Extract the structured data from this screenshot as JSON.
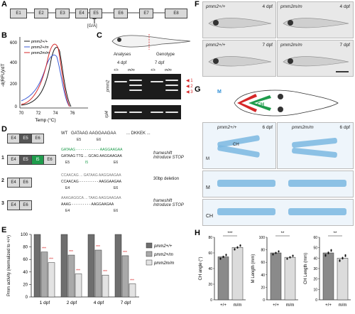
{
  "panels": {
    "a": "A",
    "b": "B",
    "c": "C",
    "d": "D",
    "e": "E",
    "f": "F",
    "g": "G",
    "h": "H"
  },
  "panel_a": {
    "exons": [
      "E1",
      "E2",
      "E3",
      "E4",
      "E5",
      "E6",
      "E7",
      "E8"
    ],
    "mutation": "[G/A]"
  },
  "panel_b": {
    "ylabel": "-d(RFU)/dT",
    "xlabel": "Temp (°C)",
    "legend": [
      "pmm2+/+",
      "pmm2+/m",
      "pmm2m/m"
    ],
    "colors": [
      "#1a1a1a",
      "#3b5bd6",
      "#d62728"
    ]
  },
  "panel_c": {
    "analyses": "Analyses",
    "genotype": "Genotype",
    "age1": "4 dpf",
    "age2": "7 dpf",
    "geno": [
      "+/+",
      "m/m",
      "+/+",
      "m/m"
    ],
    "gene1": "pmm2",
    "gene2": "rpl4",
    "arrows": [
      "1",
      "2",
      "3"
    ]
  },
  "panel_d": {
    "wt_label": "WT",
    "wt_seq": "GATAAG AAGGAAGAA",
    "wt_exons": [
      "E5",
      "E6"
    ],
    "wt_protein": "... DKKEK ...",
    "rows": [
      {
        "num": "1",
        "seq_top": "GATAAG - - - - - - - - - - - AAGGAAGAA",
        "seq_mid": "GATAAG TTG ... GCAG AAGGAAGAA",
        "exons": [
          "E5",
          "I5",
          "E6"
        ],
        "effect": "frameshift Introduce STOP"
      },
      {
        "num": "2",
        "seq_top": "CCAACAG ... GATAAG AAGGAAGAA",
        "seq_mid": "CCAACAG - - - - - - - - - AAGGAAGAA",
        "exons": [
          "E4",
          "E6"
        ],
        "effect": "30bp deletion"
      },
      {
        "num": "3",
        "seq_top": "AAAGAGGCA ... TAAG AAGGAAGAA",
        "seq_mid": "AAAG - - - - - - - - - AAGGAAGAA",
        "exons": [
          "E4",
          "E6"
        ],
        "effect": "frameshift Introduce STOP"
      }
    ]
  },
  "panel_f": {
    "labels": [
      "pmm2+/+",
      "pmm2m/m",
      "pmm2+/+",
      "pmm2m/m"
    ],
    "ages": [
      "4 dpf",
      "4 dpf",
      "7 dpf",
      "7 dpf"
    ]
  },
  "panel_g": {
    "m_label": "M",
    "ch_label": "CH",
    "titles": [
      "pmm2+/+",
      "pmm2m/m"
    ],
    "age": "6 dpf",
    "row_labels": [
      "M",
      "CH"
    ]
  },
  "chart_data": [
    {
      "type": "bar",
      "title": "",
      "ylabel": "Pmm activity (normalized to +/+)",
      "categories": [
        "1 dpf",
        "2 dpf",
        "4 dpf",
        "7 dpf"
      ],
      "ylim": [
        0,
        100
      ],
      "yticks": [
        0,
        20,
        40,
        60,
        80,
        100
      ],
      "series": [
        {
          "name": "pmm2+/+",
          "values": [
            100,
            100,
            100,
            100
          ],
          "color": "#6e6e6e"
        },
        {
          "name": "pmm2+/m",
          "values": [
            72,
            67,
            75,
            66
          ],
          "color": "#a9a9a9"
        },
        {
          "name": "pmm2m/m",
          "values": [
            55,
            37,
            35,
            21
          ],
          "color": "#e3e3e3"
        }
      ],
      "significance": "***"
    },
    {
      "type": "bar",
      "ylabel": "CH angle (°)",
      "categories": [
        "+/+",
        "m/m"
      ],
      "values": [
        55,
        67
      ],
      "ylim": [
        0,
        80
      ],
      "yticks": [
        0,
        20,
        40,
        60,
        80
      ],
      "significance": "***"
    },
    {
      "type": "bar",
      "ylabel": "M Length (mm)",
      "categories": [
        "+/+",
        "m/m"
      ],
      "values": [
        75,
        68
      ],
      "ylim": [
        0,
        100
      ],
      "yticks": [
        0,
        20,
        40,
        60,
        80,
        100
      ],
      "significance": "**"
    },
    {
      "type": "bar",
      "ylabel": "CH Length (mm)",
      "categories": [
        "+/+",
        "m/m"
      ],
      "values": [
        45,
        40
      ],
      "ylim": [
        0,
        60
      ],
      "yticks": [
        0,
        10,
        20,
        30,
        40,
        50,
        60
      ],
      "significance": "**"
    }
  ]
}
